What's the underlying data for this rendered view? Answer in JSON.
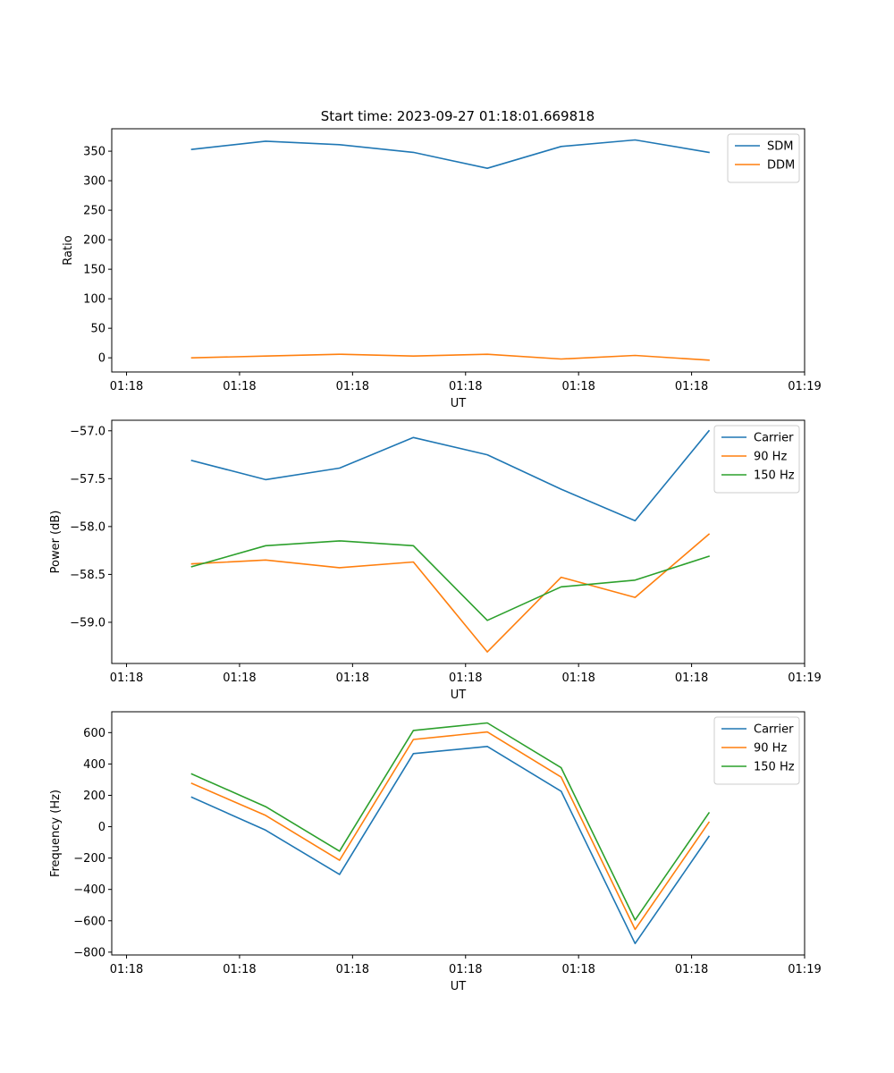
{
  "figure_title": "Start time: 2023-09-27 01:18:01.669818",
  "chart_data": [
    {
      "type": "line",
      "title": "Start time: 2023-09-27 01:18:01.669818",
      "xlabel": "UT",
      "ylabel": "Ratio",
      "x": [
        0.75,
        1.6,
        2.45,
        3.3,
        4.15,
        5.0,
        5.85,
        6.7
      ],
      "xticks": [
        0,
        1.3,
        2.6,
        3.9,
        5.2,
        6.5,
        7.8
      ],
      "xtick_labels": [
        "01:18",
        "01:18",
        "01:18",
        "01:18",
        "01:18",
        "01:18",
        "01:19"
      ],
      "xlim": [
        -0.17,
        7.8
      ],
      "ylim": [
        -24,
        388
      ],
      "yticks": [
        0,
        50,
        100,
        150,
        200,
        250,
        300,
        350
      ],
      "ytick_labels": [
        "0",
        "50",
        "100",
        "150",
        "200",
        "250",
        "300",
        "350"
      ],
      "legend_position": "top-right",
      "series": [
        {
          "name": "SDM",
          "color": "#1f77b4",
          "values": [
            353,
            367,
            361,
            348,
            321,
            358,
            369,
            348
          ]
        },
        {
          "name": "DDM",
          "color": "#ff7f0e",
          "values": [
            0,
            3,
            6,
            3,
            6,
            -2,
            4,
            -4
          ]
        }
      ]
    },
    {
      "type": "line",
      "xlabel": "UT",
      "ylabel": "Power (dB)",
      "x": [
        0.75,
        1.6,
        2.45,
        3.3,
        4.15,
        5.0,
        5.85,
        6.7
      ],
      "xticks": [
        0,
        1.3,
        2.6,
        3.9,
        5.2,
        6.5,
        7.8
      ],
      "xtick_labels": [
        "01:18",
        "01:18",
        "01:18",
        "01:18",
        "01:18",
        "01:18",
        "01:19"
      ],
      "xlim": [
        -0.17,
        7.8
      ],
      "ylim": [
        -59.43,
        -56.89
      ],
      "yticks": [
        -59.0,
        -58.5,
        -58.0,
        -57.5,
        -57.0
      ],
      "ytick_labels": [
        "−59.0",
        "−58.5",
        "−58.0",
        "−57.5",
        "−57.0"
      ],
      "legend_position": "top-right",
      "series": [
        {
          "name": "Carrier",
          "color": "#1f77b4",
          "values": [
            -57.31,
            -57.51,
            -57.39,
            -57.07,
            -57.25,
            -57.61,
            -57.94,
            -57.0
          ]
        },
        {
          "name": "90 Hz",
          "color": "#ff7f0e",
          "values": [
            -58.39,
            -58.35,
            -58.43,
            -58.37,
            -59.31,
            -58.53,
            -58.74,
            -58.08
          ]
        },
        {
          "name": "150 Hz",
          "color": "#2ca02c",
          "values": [
            -58.42,
            -58.2,
            -58.15,
            -58.2,
            -58.98,
            -58.63,
            -58.56,
            -58.31
          ]
        }
      ]
    },
    {
      "type": "line",
      "xlabel": "UT",
      "ylabel": "Frequency (Hz)",
      "x": [
        0.75,
        1.6,
        2.45,
        3.3,
        4.15,
        5.0,
        5.85,
        6.7
      ],
      "xticks": [
        0,
        1.3,
        2.6,
        3.9,
        5.2,
        6.5,
        7.8
      ],
      "xtick_labels": [
        "01:18",
        "01:18",
        "01:18",
        "01:18",
        "01:18",
        "01:18",
        "01:19"
      ],
      "xlim": [
        -0.17,
        7.8
      ],
      "ylim": [
        -818,
        733
      ],
      "yticks": [
        -800,
        -600,
        -400,
        -200,
        0,
        200,
        400,
        600
      ],
      "ytick_labels": [
        "−800",
        "−600",
        "−400",
        "−200",
        "0",
        "200",
        "400",
        "600"
      ],
      "legend_position": "top-right",
      "series": [
        {
          "name": "Carrier",
          "color": "#1f77b4",
          "values": [
            188,
            -22,
            -304,
            466,
            512,
            226,
            -745,
            -62
          ]
        },
        {
          "name": "90 Hz",
          "color": "#ff7f0e",
          "values": [
            276,
            72,
            -214,
            556,
            604,
            316,
            -655,
            28
          ]
        },
        {
          "name": "150 Hz",
          "color": "#2ca02c",
          "values": [
            336,
            128,
            -156,
            614,
            662,
            376,
            -595,
            88
          ]
        }
      ]
    }
  ]
}
